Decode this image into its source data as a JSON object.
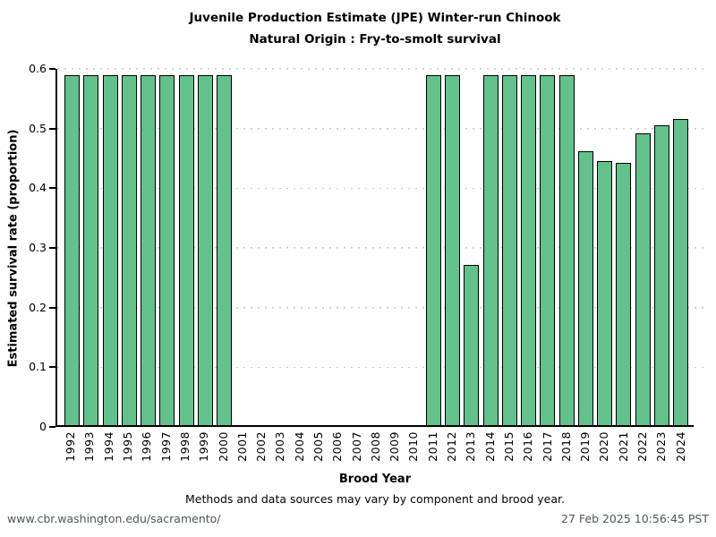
{
  "chart_data": {
    "type": "bar",
    "title": "Juvenile Production Estimate (JPE) Winter-run Chinook",
    "subtitle": "Natural Origin : Fry-to-smolt survival",
    "xlabel": "Brood Year",
    "ylabel": "Estimated survival rate (proportion)",
    "ylim": [
      0,
      0.6
    ],
    "yticks": [
      "0",
      "0.1",
      "0.2",
      "0.3",
      "0.4",
      "0.5",
      "0.6"
    ],
    "grid": "horizontal dotted gridlines at each y tick",
    "legend": "none",
    "categories": [
      "1992",
      "1993",
      "1994",
      "1995",
      "1996",
      "1997",
      "1998",
      "1999",
      "2000",
      "2001",
      "2002",
      "2003",
      "2004",
      "2005",
      "2006",
      "2007",
      "2008",
      "2009",
      "2010",
      "2011",
      "2012",
      "2013",
      "2014",
      "2015",
      "2016",
      "2017",
      "2018",
      "2019",
      "2020",
      "2021",
      "2022",
      "2023",
      "2024"
    ],
    "values": [
      0.59,
      0.59,
      0.59,
      0.59,
      0.59,
      0.59,
      0.59,
      0.59,
      0.59,
      null,
      null,
      null,
      null,
      null,
      null,
      null,
      null,
      null,
      null,
      0.59,
      0.59,
      0.27,
      0.59,
      0.59,
      0.59,
      0.59,
      0.59,
      0.462,
      0.445,
      0.441,
      0.492,
      0.505,
      0.515
    ],
    "bar_fill": "#63c18b",
    "bar_border": "#000000",
    "gridline_color": "#c8c8c8"
  },
  "footer": {
    "note": "Methods and data sources may vary by component and brood year.",
    "url": "www.cbr.washington.edu/sacramento/",
    "timestamp": "27 Feb 2025 10:56:45 PST",
    "text_color": "#4d565c"
  }
}
